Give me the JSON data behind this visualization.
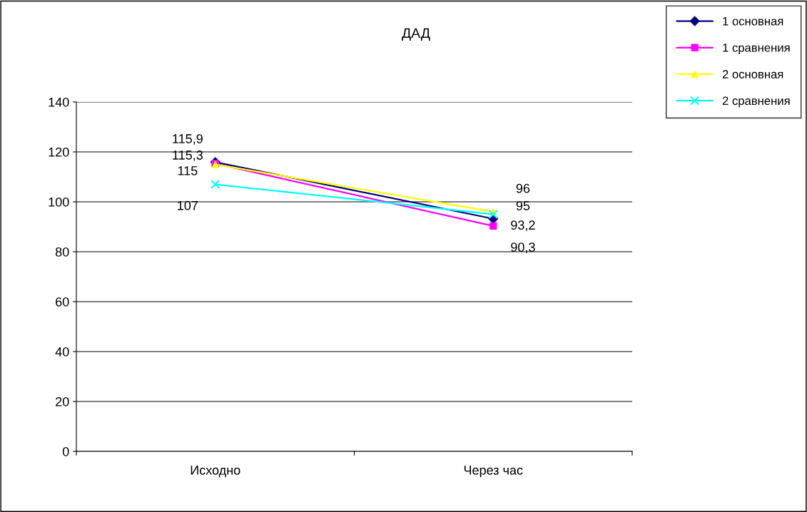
{
  "chart_data": {
    "type": "line",
    "title": "ДАД",
    "categories": [
      "Исходно",
      "Через час"
    ],
    "series": [
      {
        "name": "1 основная",
        "color": "#000080",
        "marker": "diamond",
        "values": [
          115.9,
          93.2
        ],
        "value_labels": [
          "115,9",
          "93,2"
        ]
      },
      {
        "name": "1 сравнения",
        "color": "#ff00ff",
        "marker": "square",
        "values": [
          115.3,
          90.3
        ],
        "value_labels": [
          "115,3",
          "90,3"
        ]
      },
      {
        "name": "2 основная",
        "color": "#ffff00",
        "marker": "triangle",
        "values": [
          115,
          96
        ],
        "value_labels": [
          "115",
          "96"
        ]
      },
      {
        "name": "2 сравнения",
        "color": "#00ffff",
        "marker": "cross",
        "values": [
          107,
          95
        ],
        "value_labels": [
          "107",
          "95"
        ]
      }
    ],
    "ylim": [
      0,
      140
    ],
    "yticks": [
      0,
      20,
      40,
      60,
      80,
      100,
      120,
      140
    ],
    "grid": "y",
    "legend": "top right"
  }
}
